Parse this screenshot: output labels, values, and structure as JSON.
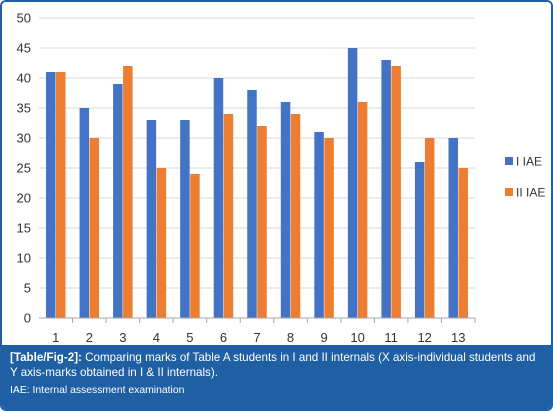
{
  "chart_data": {
    "type": "bar",
    "categories": [
      "1",
      "2",
      "3",
      "4",
      "5",
      "6",
      "7",
      "8",
      "9",
      "10",
      "11",
      "12",
      "13"
    ],
    "series": [
      {
        "name": "I IAE",
        "color": "#4472c4",
        "values": [
          41,
          35,
          39,
          33,
          33,
          40,
          38,
          36,
          31,
          45,
          43,
          26,
          30
        ]
      },
      {
        "name": "II IAE",
        "color": "#ed7d31",
        "values": [
          41,
          30,
          42,
          25,
          24,
          34,
          32,
          34,
          30,
          36,
          42,
          30,
          25
        ]
      }
    ],
    "yticks": [
      "0",
      "5",
      "10",
      "15",
      "20",
      "25",
      "30",
      "35",
      "40",
      "45",
      "50"
    ],
    "ylim": [
      0,
      50
    ],
    "grid": true,
    "legend_position": "right"
  },
  "caption": {
    "label": "[Table/Fig-2]:",
    "text": " Comparing marks of Table A students in I and II internals (X axis-individual students and Y axis-marks obtained in I & II internals).",
    "note": "IAE: Internal assessment examination",
    "background_color": "#1f5fa3"
  }
}
